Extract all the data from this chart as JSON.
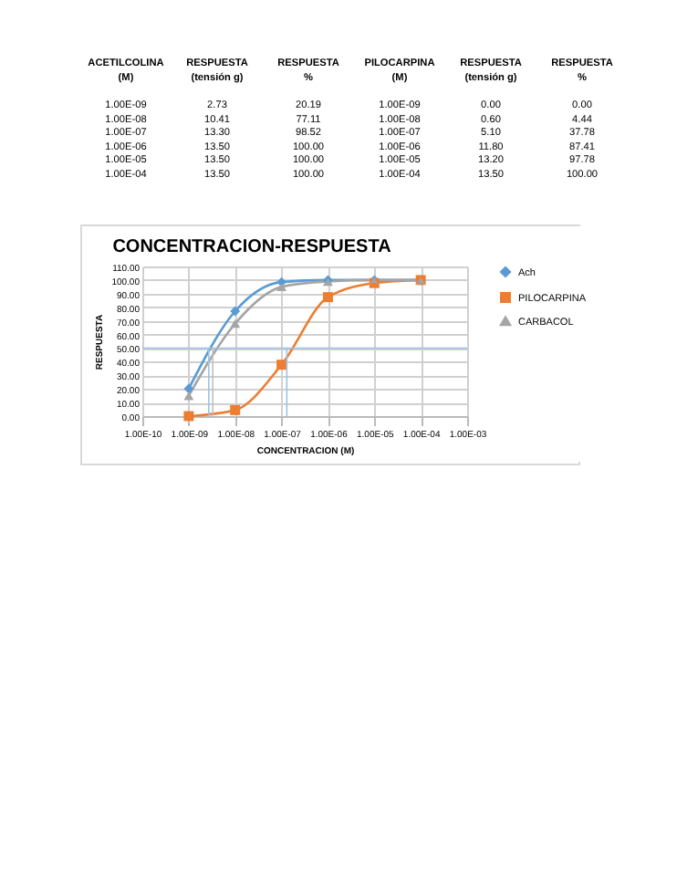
{
  "chart_data": [
    {
      "type": "other",
      "annotations": [
        "ACETILCOLINA",
        "RESPUESTA",
        "RESPUESTA",
        "PILOCARPINA",
        "RESPUESTA",
        "RESPUESTA",
        "(M)",
        "(tensión g)",
        "%",
        "(M)",
        "(tensión g)",
        "%",
        "1.00E-09",
        "2.73",
        "20.19",
        "1.00E-09",
        "0.00",
        "0.00",
        "1.00E-08",
        "10.41",
        "77.11",
        "1.00E-08",
        "0.60",
        "4.44",
        "1.00E-07",
        "13.30",
        "98.52",
        "1.00E-07",
        "5.10",
        "37.78",
        "1.00E-06",
        "13.50",
        "100.00",
        "1.00E-06",
        "11.80",
        "87.41",
        "1.00E-05",
        "13.50",
        "100.00",
        "1.00E-05",
        "13.20",
        "97.78",
        "1.00E-04",
        "13.50",
        "100.00",
        "1.00E-04",
        "13.50",
        "100.00"
      ]
    },
    {
      "type": "line",
      "title": "CONCENTRACION-RESPUESTA",
      "xlabel": "CONCENTRACION (M)",
      "ylabel": "RESPUESTA",
      "x": [
        1e-09,
        1e-08,
        1e-07,
        1e-06,
        1e-05,
        0.0001
      ],
      "series": [
        {
          "name": "Ach",
          "color": "#5b9bd5",
          "marker": "diamond",
          "values": [
            20.19,
            77.11,
            98.52,
            100,
            100,
            100
          ]
        },
        {
          "name": "PILOCARPINA",
          "color": "#ed7d31",
          "marker": "square",
          "values": [
            0,
            4.44,
            37.78,
            87.41,
            97.78,
            100
          ]
        },
        {
          "name": "CARBACOL",
          "color": "#a5a5a5",
          "marker": "triangle",
          "values": [
            15,
            68,
            95,
            99,
            100,
            100
          ]
        }
      ],
      "log": "x",
      "xlim": [
        1e-10,
        0.001
      ],
      "xticks": [
        {
          "value": 1e-10,
          "label": "1.00E-10"
        },
        {
          "value": 1e-09,
          "label": "1.00E-09"
        },
        {
          "value": 1e-08,
          "label": "1.00E-08"
        },
        {
          "value": 1e-07,
          "label": "1.00E-07"
        },
        {
          "value": 1e-06,
          "label": "1.00E-06"
        },
        {
          "value": 1e-05,
          "label": "1.00E-05"
        },
        {
          "value": 0.0001,
          "label": "1.00E-04"
        },
        {
          "value": 0.001,
          "label": "1.00E-03"
        }
      ],
      "ylim": [
        0,
        110
      ],
      "yticks": [
        {
          "value": 0,
          "label": "0.00"
        },
        {
          "value": 10,
          "label": "10.00"
        },
        {
          "value": 20,
          "label": "20.00"
        },
        {
          "value": 30,
          "label": "30.00"
        },
        {
          "value": 40,
          "label": "40.00"
        },
        {
          "value": 50,
          "label": "50.00"
        },
        {
          "value": 60,
          "label": "60.00"
        },
        {
          "value": 70,
          "label": "70.00"
        },
        {
          "value": 80,
          "label": "80.00"
        },
        {
          "value": 90,
          "label": "90.00"
        },
        {
          "value": 100,
          "label": "100.00"
        },
        {
          "value": 110,
          "label": "110.00"
        }
      ],
      "ref_lines": [
        {
          "axis": "y",
          "value": 50,
          "color": "#9dc3e6"
        },
        {
          "axis": "x",
          "value": 2.7e-09,
          "color": "#9dc3e6"
        },
        {
          "axis": "x",
          "value": 3.3e-09,
          "color": "#bfbfbf"
        },
        {
          "axis": "x",
          "value": 1.3e-07,
          "color": "#9dc3e6"
        }
      ],
      "grid": true,
      "legend": "right"
    }
  ]
}
